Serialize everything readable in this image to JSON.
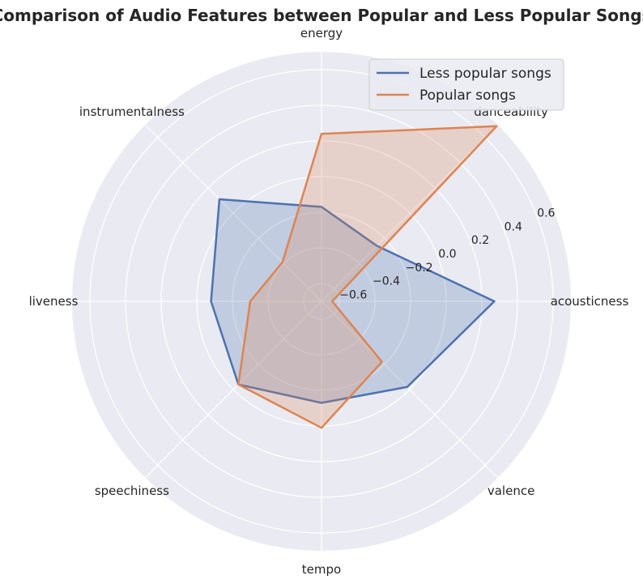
{
  "chart_data": {
    "type": "radar",
    "title": "Comparison of Audio Features between Popular and Less Popular Songs",
    "categories": [
      "acousticness",
      "danceability",
      "energy",
      "instrumentalness",
      "liveness",
      "speechiness",
      "tempo",
      "valence"
    ],
    "rlim": [
      -0.7,
      0.7
    ],
    "rticks": [
      -0.6,
      -0.4,
      -0.2,
      0.0,
      0.2,
      0.4,
      0.6
    ],
    "rtick_labels": [
      "−0.6",
      "−0.4",
      "−0.2",
      "0.0",
      "0.2",
      "0.4",
      "0.6"
    ],
    "grid": true,
    "legend_position": "top-right",
    "series": [
      {
        "name": "Less popular songs",
        "color": "#4c72b0",
        "values": [
          0.27,
          -0.26,
          -0.17,
          0.11,
          -0.08,
          -0.04,
          -0.13,
          -0.02
        ]
      },
      {
        "name": "Popular songs",
        "color": "#dd8452",
        "values": [
          -0.64,
          0.69,
          0.24,
          -0.39,
          -0.3,
          -0.04,
          0.01,
          -0.22
        ]
      }
    ]
  }
}
